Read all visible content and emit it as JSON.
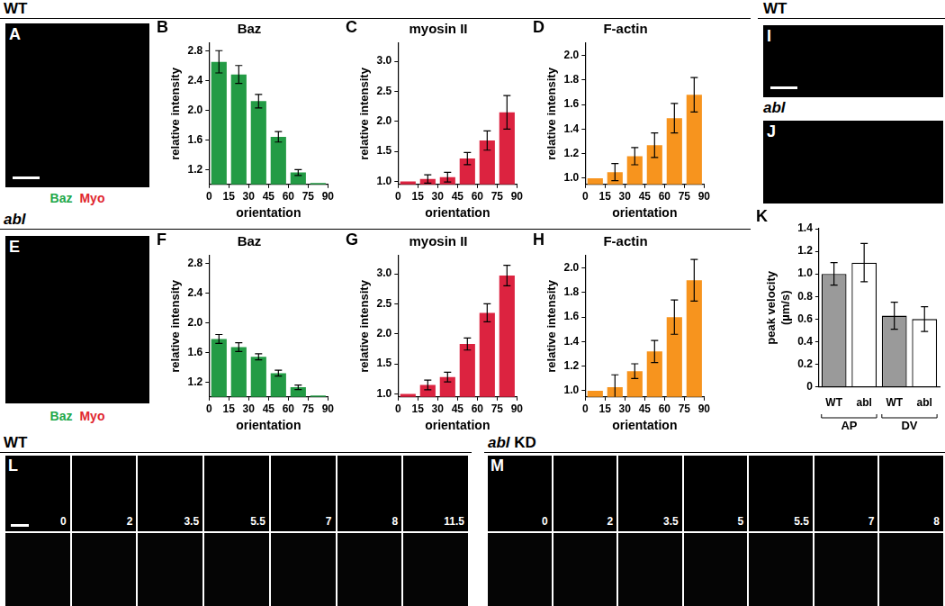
{
  "chart_data": [
    {
      "panel": "B",
      "type": "histogram",
      "title": "Baz",
      "xlabel": "orientation",
      "ylabel": "relative intensity",
      "bins": [
        0,
        15,
        30,
        45,
        60,
        75,
        90
      ],
      "values": [
        2.65,
        2.48,
        2.12,
        1.64,
        1.16,
        1.02
      ],
      "errors": [
        0.15,
        0.12,
        0.09,
        0.07,
        0.04,
        0
      ],
      "color": "#239b45",
      "xlim": [
        0,
        90
      ],
      "xticks": [
        0,
        15,
        30,
        45,
        60,
        75,
        90
      ],
      "ylim": [
        1.0,
        2.9
      ],
      "yticks": [
        1.2,
        1.6,
        {
          "value": 2,
          "label": "2.0"
        },
        2.4,
        2.8
      ],
      "grid": false
    },
    {
      "panel": "C",
      "type": "histogram",
      "title": "myosin II",
      "xlabel": "orientation",
      "ylabel": "relative intensity",
      "bins": [
        0,
        15,
        30,
        45,
        60,
        75,
        90
      ],
      "values": [
        1.0,
        1.04,
        1.07,
        1.38,
        1.68,
        2.15
      ],
      "errors": [
        0,
        0.07,
        0.08,
        0.1,
        0.16,
        0.28
      ],
      "color": "#dc2340",
      "xlim": [
        0,
        90
      ],
      "xticks": [
        0,
        15,
        30,
        45,
        60,
        75,
        90
      ],
      "ylim": [
        0.95,
        3.3
      ],
      "yticks": [
        {
          "value": 1,
          "label": "1.0"
        },
        1.5,
        {
          "value": 2,
          "label": "2.0"
        },
        2.5,
        {
          "value": 3,
          "label": "3.0"
        }
      ],
      "grid": false
    },
    {
      "panel": "D",
      "type": "histogram",
      "title": "F-actin",
      "xlabel": "orientation",
      "ylabel": "relative intensity",
      "bins": [
        0,
        15,
        30,
        45,
        60,
        75,
        90
      ],
      "values": [
        1.0,
        1.05,
        1.18,
        1.27,
        1.49,
        1.68
      ],
      "errors": [
        0,
        0.07,
        0.07,
        0.1,
        0.12,
        0.14
      ],
      "color": "#f7941e",
      "xlim": [
        0,
        90
      ],
      "xticks": [
        0,
        15,
        30,
        45,
        60,
        75,
        90
      ],
      "ylim": [
        0.95,
        2.1
      ],
      "yticks": [
        {
          "value": 1,
          "label": "1.0"
        },
        1.2,
        1.4,
        1.6,
        1.8,
        {
          "value": 2,
          "label": "2.0"
        }
      ],
      "grid": false
    },
    {
      "panel": "F",
      "type": "histogram",
      "title": "Baz",
      "xlabel": "orientation",
      "ylabel": "relative intensity",
      "bins": [
        0,
        15,
        30,
        45,
        60,
        75,
        90
      ],
      "values": [
        1.78,
        1.67,
        1.54,
        1.32,
        1.13,
        1.02
      ],
      "errors": [
        0.06,
        0.06,
        0.04,
        0.04,
        0.03,
        0
      ],
      "color": "#239b45",
      "xlim": [
        0,
        90
      ],
      "xticks": [
        0,
        15,
        30,
        45,
        60,
        75,
        90
      ],
      "ylim": [
        1.0,
        2.9
      ],
      "yticks": [
        1.2,
        1.6,
        {
          "value": 2,
          "label": "2.0"
        },
        2.4,
        2.8
      ],
      "grid": false
    },
    {
      "panel": "G",
      "type": "histogram",
      "title": "myosin II",
      "xlabel": "orientation",
      "ylabel": "relative intensity",
      "bins": [
        0,
        15,
        30,
        45,
        60,
        75,
        90
      ],
      "values": [
        1.0,
        1.15,
        1.28,
        1.83,
        2.35,
        2.97
      ],
      "errors": [
        0,
        0.08,
        0.08,
        0.1,
        0.15,
        0.17
      ],
      "color": "#dc2340",
      "xlim": [
        0,
        90
      ],
      "xticks": [
        0,
        15,
        30,
        45,
        60,
        75,
        90
      ],
      "ylim": [
        0.95,
        3.3
      ],
      "yticks": [
        {
          "value": 1,
          "label": "1.0"
        },
        1.5,
        {
          "value": 2,
          "label": "2.0"
        },
        2.5,
        {
          "value": 3,
          "label": "3.0"
        }
      ],
      "grid": false
    },
    {
      "panel": "H",
      "type": "histogram",
      "title": "F-actin",
      "xlabel": "orientation",
      "ylabel": "relative intensity",
      "bins": [
        0,
        15,
        30,
        45,
        60,
        75,
        90
      ],
      "values": [
        1.0,
        1.03,
        1.16,
        1.32,
        1.6,
        1.9
      ],
      "errors": [
        0,
        0.1,
        0.06,
        0.09,
        0.14,
        0.17
      ],
      "color": "#f7941e",
      "xlim": [
        0,
        90
      ],
      "xticks": [
        0,
        15,
        30,
        45,
        60,
        75,
        90
      ],
      "ylim": [
        0.95,
        2.1
      ],
      "yticks": [
        {
          "value": 1,
          "label": "1.0"
        },
        1.2,
        1.4,
        1.6,
        1.8,
        {
          "value": 2,
          "label": "2.0"
        }
      ],
      "grid": false
    },
    {
      "panel": "K",
      "type": "bar",
      "ylabel": [
        "peak velocity",
        "(µm/s)"
      ],
      "categories": [
        "WT",
        "abl",
        "WT",
        "abl"
      ],
      "values": [
        1.0,
        1.1,
        0.63,
        0.6
      ],
      "errors": [
        0.1,
        0.17,
        0.12,
        0.11
      ],
      "colors": [
        "#9a9a9a",
        "#ffffff",
        "#9a9a9a",
        "#ffffff"
      ],
      "groups": [
        "AP",
        "DV"
      ],
      "ylim": [
        0,
        1.4
      ],
      "yticks": [
        0,
        0.2,
        0.4,
        0.6,
        0.8,
        {
          "value": 1,
          "label": "1.0"
        },
        1.2,
        1.4
      ],
      "grid": false
    }
  ],
  "headers": {
    "top_left": [
      {
        "text": "WT",
        "italic": false
      }
    ],
    "middle_left": [
      {
        "text": "abl",
        "italic": true
      }
    ],
    "top_right": [
      {
        "text": "WT",
        "italic": false
      }
    ],
    "J": [
      {
        "text": "abl",
        "italic": true
      }
    ],
    "L": [
      {
        "text": "WT",
        "italic": false
      }
    ],
    "M": [
      {
        "text": "abl",
        "italic": true
      },
      {
        "text": " KD",
        "italic": false
      }
    ]
  },
  "images": [
    {
      "panel": "A",
      "channels": [
        {
          "label": "Baz",
          "color": "#22a84a"
        },
        {
          "label": "Myo",
          "color": "#e0262e"
        }
      ]
    },
    {
      "panel": "E",
      "channels": [
        {
          "label": "Baz",
          "color": "#22a84a"
        },
        {
          "label": "Myo",
          "color": "#e0262e"
        }
      ]
    },
    {
      "panel": "I"
    },
    {
      "panel": "J"
    },
    {
      "panel": "L",
      "frames": [
        0,
        2,
        3.5,
        5.5,
        7,
        8,
        11.5
      ]
    },
    {
      "panel": "M",
      "frames": [
        0,
        2,
        3.5,
        5,
        5.5,
        7,
        8
      ]
    }
  ]
}
